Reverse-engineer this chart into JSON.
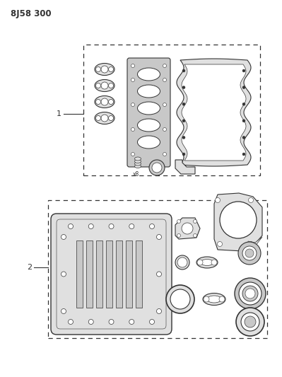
{
  "title": "8J58 300",
  "bg_color": "#ffffff",
  "line_color": "#333333",
  "label1": "1",
  "label2": "2",
  "fig_width": 3.99,
  "fig_height": 5.33
}
